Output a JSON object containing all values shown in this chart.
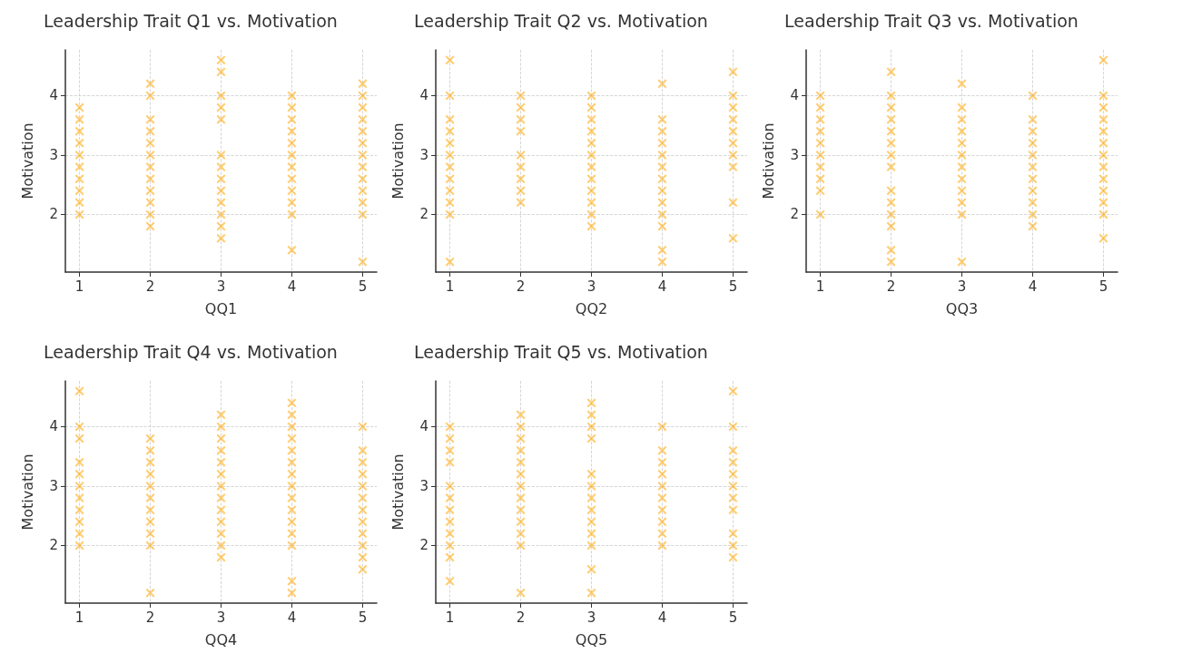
{
  "chart_data": [
    {
      "type": "scatter",
      "title": "Leadership Trait Q1 vs. Motivation",
      "xlabel": "QQ1",
      "ylabel": "Motivation",
      "xlim": [
        0.8,
        5.2
      ],
      "xticks": [
        1,
        2,
        3,
        4,
        5
      ],
      "ylim": [
        1.03,
        4.77
      ],
      "yticks": [
        2,
        3,
        4
      ],
      "grid": true,
      "marker": "cross",
      "series": [
        {
          "color": "#ffa500",
          "x": [
            1,
            1,
            1,
            1,
            1,
            1,
            1,
            1,
            1,
            1,
            2,
            2,
            2,
            2,
            2,
            2,
            2,
            2,
            2,
            2,
            2,
            2,
            3,
            3,
            3,
            3,
            3,
            3,
            3,
            3,
            3,
            3,
            3,
            3,
            3,
            4,
            4,
            4,
            4,
            4,
            4,
            4,
            4,
            4,
            4,
            4,
            4,
            5,
            5,
            5,
            5,
            5,
            5,
            5,
            5,
            5,
            5,
            5,
            5,
            5
          ],
          "values": [
            3.8,
            3.6,
            3.4,
            3.2,
            3.0,
            2.8,
            2.6,
            2.4,
            2.2,
            2.0,
            4.2,
            4.0,
            3.6,
            3.4,
            3.2,
            3.0,
            2.8,
            2.6,
            2.4,
            2.2,
            2.0,
            1.8,
            4.6,
            4.4,
            4.0,
            3.8,
            3.6,
            3.0,
            2.8,
            2.6,
            2.4,
            2.2,
            2.0,
            1.8,
            1.6,
            4.0,
            3.8,
            3.6,
            3.4,
            3.2,
            3.0,
            2.8,
            2.6,
            2.4,
            2.2,
            2.0,
            1.4,
            4.2,
            4.0,
            3.8,
            3.6,
            3.4,
            3.2,
            3.0,
            2.8,
            2.6,
            2.4,
            2.2,
            2.0,
            1.2
          ]
        }
      ]
    },
    {
      "type": "scatter",
      "title": "Leadership Trait Q2 vs. Motivation",
      "xlabel": "QQ2",
      "ylabel": "Motivation",
      "xlim": [
        0.8,
        5.2
      ],
      "xticks": [
        1,
        2,
        3,
        4,
        5
      ],
      "ylim": [
        1.03,
        4.77
      ],
      "yticks": [
        2,
        3,
        4
      ],
      "grid": true,
      "marker": "cross",
      "series": [
        {
          "color": "#ffa500",
          "x": [
            1,
            1,
            1,
            1,
            1,
            1,
            1,
            1,
            1,
            1,
            1,
            1,
            2,
            2,
            2,
            2,
            2,
            2,
            2,
            2,
            2,
            3,
            3,
            3,
            3,
            3,
            3,
            3,
            3,
            3,
            3,
            3,
            3,
            4,
            4,
            4,
            4,
            4,
            4,
            4,
            4,
            4,
            4,
            4,
            4,
            4,
            5,
            5,
            5,
            5,
            5,
            5,
            5,
            5,
            5,
            5
          ],
          "values": [
            4.6,
            4.0,
            3.6,
            3.4,
            3.2,
            3.0,
            2.8,
            2.6,
            2.4,
            2.2,
            2.0,
            1.2,
            4.0,
            3.8,
            3.6,
            3.4,
            3.0,
            2.8,
            2.6,
            2.4,
            2.2,
            4.0,
            3.8,
            3.6,
            3.4,
            3.2,
            3.0,
            2.8,
            2.6,
            2.4,
            2.2,
            2.0,
            1.8,
            4.2,
            3.6,
            3.4,
            3.2,
            3.0,
            2.8,
            2.6,
            2.4,
            2.2,
            2.0,
            1.8,
            1.4,
            1.2,
            4.4,
            4.0,
            3.8,
            3.6,
            3.4,
            3.2,
            3.0,
            2.8,
            2.2,
            1.6
          ]
        }
      ]
    },
    {
      "type": "scatter",
      "title": "Leadership Trait Q3 vs. Motivation",
      "xlabel": "QQ3",
      "ylabel": "Motivation",
      "xlim": [
        0.8,
        5.2
      ],
      "xticks": [
        1,
        2,
        3,
        4,
        5
      ],
      "ylim": [
        1.03,
        4.77
      ],
      "yticks": [
        2,
        3,
        4
      ],
      "grid": true,
      "marker": "cross",
      "series": [
        {
          "color": "#ffa500",
          "x": [
            1,
            1,
            1,
            1,
            1,
            1,
            1,
            1,
            1,
            1,
            2,
            2,
            2,
            2,
            2,
            2,
            2,
            2,
            2,
            2,
            2,
            2,
            2,
            2,
            3,
            3,
            3,
            3,
            3,
            3,
            3,
            3,
            3,
            3,
            3,
            3,
            4,
            4,
            4,
            4,
            4,
            4,
            4,
            4,
            4,
            4,
            4,
            5,
            5,
            5,
            5,
            5,
            5,
            5,
            5,
            5,
            5,
            5,
            5,
            5
          ],
          "values": [
            4.0,
            3.8,
            3.6,
            3.4,
            3.2,
            3.0,
            2.8,
            2.6,
            2.4,
            2.0,
            4.4,
            4.0,
            3.8,
            3.6,
            3.4,
            3.2,
            3.0,
            2.8,
            2.4,
            2.2,
            2.0,
            1.8,
            1.4,
            1.2,
            4.2,
            3.8,
            3.6,
            3.4,
            3.2,
            3.0,
            2.8,
            2.6,
            2.4,
            2.2,
            2.0,
            1.2,
            4.0,
            3.6,
            3.4,
            3.2,
            3.0,
            2.8,
            2.6,
            2.4,
            2.2,
            2.0,
            1.8,
            4.6,
            4.0,
            3.8,
            3.6,
            3.4,
            3.2,
            3.0,
            2.8,
            2.6,
            2.4,
            2.2,
            2.0,
            1.6
          ]
        }
      ]
    },
    {
      "type": "scatter",
      "title": "Leadership Trait Q4 vs. Motivation",
      "xlabel": "QQ4",
      "ylabel": "Motivation",
      "xlim": [
        0.8,
        5.2
      ],
      "xticks": [
        1,
        2,
        3,
        4,
        5
      ],
      "ylim": [
        1.03,
        4.77
      ],
      "yticks": [
        2,
        3,
        4
      ],
      "grid": true,
      "marker": "cross",
      "series": [
        {
          "color": "#ffa500",
          "x": [
            1,
            1,
            1,
            1,
            1,
            1,
            1,
            1,
            1,
            1,
            1,
            2,
            2,
            2,
            2,
            2,
            2,
            2,
            2,
            2,
            2,
            2,
            3,
            3,
            3,
            3,
            3,
            3,
            3,
            3,
            3,
            3,
            3,
            3,
            3,
            4,
            4,
            4,
            4,
            4,
            4,
            4,
            4,
            4,
            4,
            4,
            4,
            4,
            4,
            4,
            5,
            5,
            5,
            5,
            5,
            5,
            5,
            5,
            5,
            5,
            5,
            5
          ],
          "values": [
            4.6,
            4.0,
            3.8,
            3.4,
            3.2,
            3.0,
            2.8,
            2.6,
            2.4,
            2.2,
            2.0,
            3.8,
            3.6,
            3.4,
            3.2,
            3.0,
            2.8,
            2.6,
            2.4,
            2.2,
            2.0,
            1.2,
            4.2,
            4.0,
            3.8,
            3.6,
            3.4,
            3.2,
            3.0,
            2.8,
            2.6,
            2.4,
            2.2,
            2.0,
            1.8,
            4.4,
            4.2,
            4.0,
            3.8,
            3.6,
            3.4,
            3.2,
            3.0,
            2.8,
            2.6,
            2.4,
            2.2,
            2.0,
            1.4,
            1.2,
            4.0,
            3.6,
            3.4,
            3.2,
            3.0,
            2.8,
            2.6,
            2.4,
            2.2,
            2.0,
            1.8,
            1.6
          ]
        }
      ]
    },
    {
      "type": "scatter",
      "title": "Leadership Trait Q5 vs. Motivation",
      "xlabel": "QQ5",
      "ylabel": "Motivation",
      "xlim": [
        0.8,
        5.2
      ],
      "xticks": [
        1,
        2,
        3,
        4,
        5
      ],
      "ylim": [
        1.03,
        4.77
      ],
      "yticks": [
        2,
        3,
        4
      ],
      "grid": true,
      "marker": "cross",
      "series": [
        {
          "color": "#ffa500",
          "x": [
            1,
            1,
            1,
            1,
            1,
            1,
            1,
            1,
            1,
            1,
            1,
            1,
            2,
            2,
            2,
            2,
            2,
            2,
            2,
            2,
            2,
            2,
            2,
            2,
            2,
            3,
            3,
            3,
            3,
            3,
            3,
            3,
            3,
            3,
            3,
            3,
            3,
            3,
            4,
            4,
            4,
            4,
            4,
            4,
            4,
            4,
            4,
            4,
            5,
            5,
            5,
            5,
            5,
            5,
            5,
            5,
            5,
            5,
            5
          ],
          "values": [
            4.0,
            3.8,
            3.6,
            3.4,
            3.0,
            2.8,
            2.6,
            2.4,
            2.2,
            2.0,
            1.8,
            1.4,
            4.2,
            4.0,
            3.8,
            3.6,
            3.4,
            3.2,
            3.0,
            2.8,
            2.6,
            2.4,
            2.2,
            2.0,
            1.2,
            4.4,
            4.2,
            4.0,
            3.8,
            3.2,
            3.0,
            2.8,
            2.6,
            2.4,
            2.2,
            2.0,
            1.6,
            1.2,
            4.0,
            3.6,
            3.4,
            3.2,
            3.0,
            2.8,
            2.6,
            2.4,
            2.2,
            2.0,
            4.6,
            4.0,
            3.6,
            3.4,
            3.2,
            3.0,
            2.8,
            2.6,
            2.2,
            2.0,
            1.8
          ]
        }
      ]
    }
  ]
}
